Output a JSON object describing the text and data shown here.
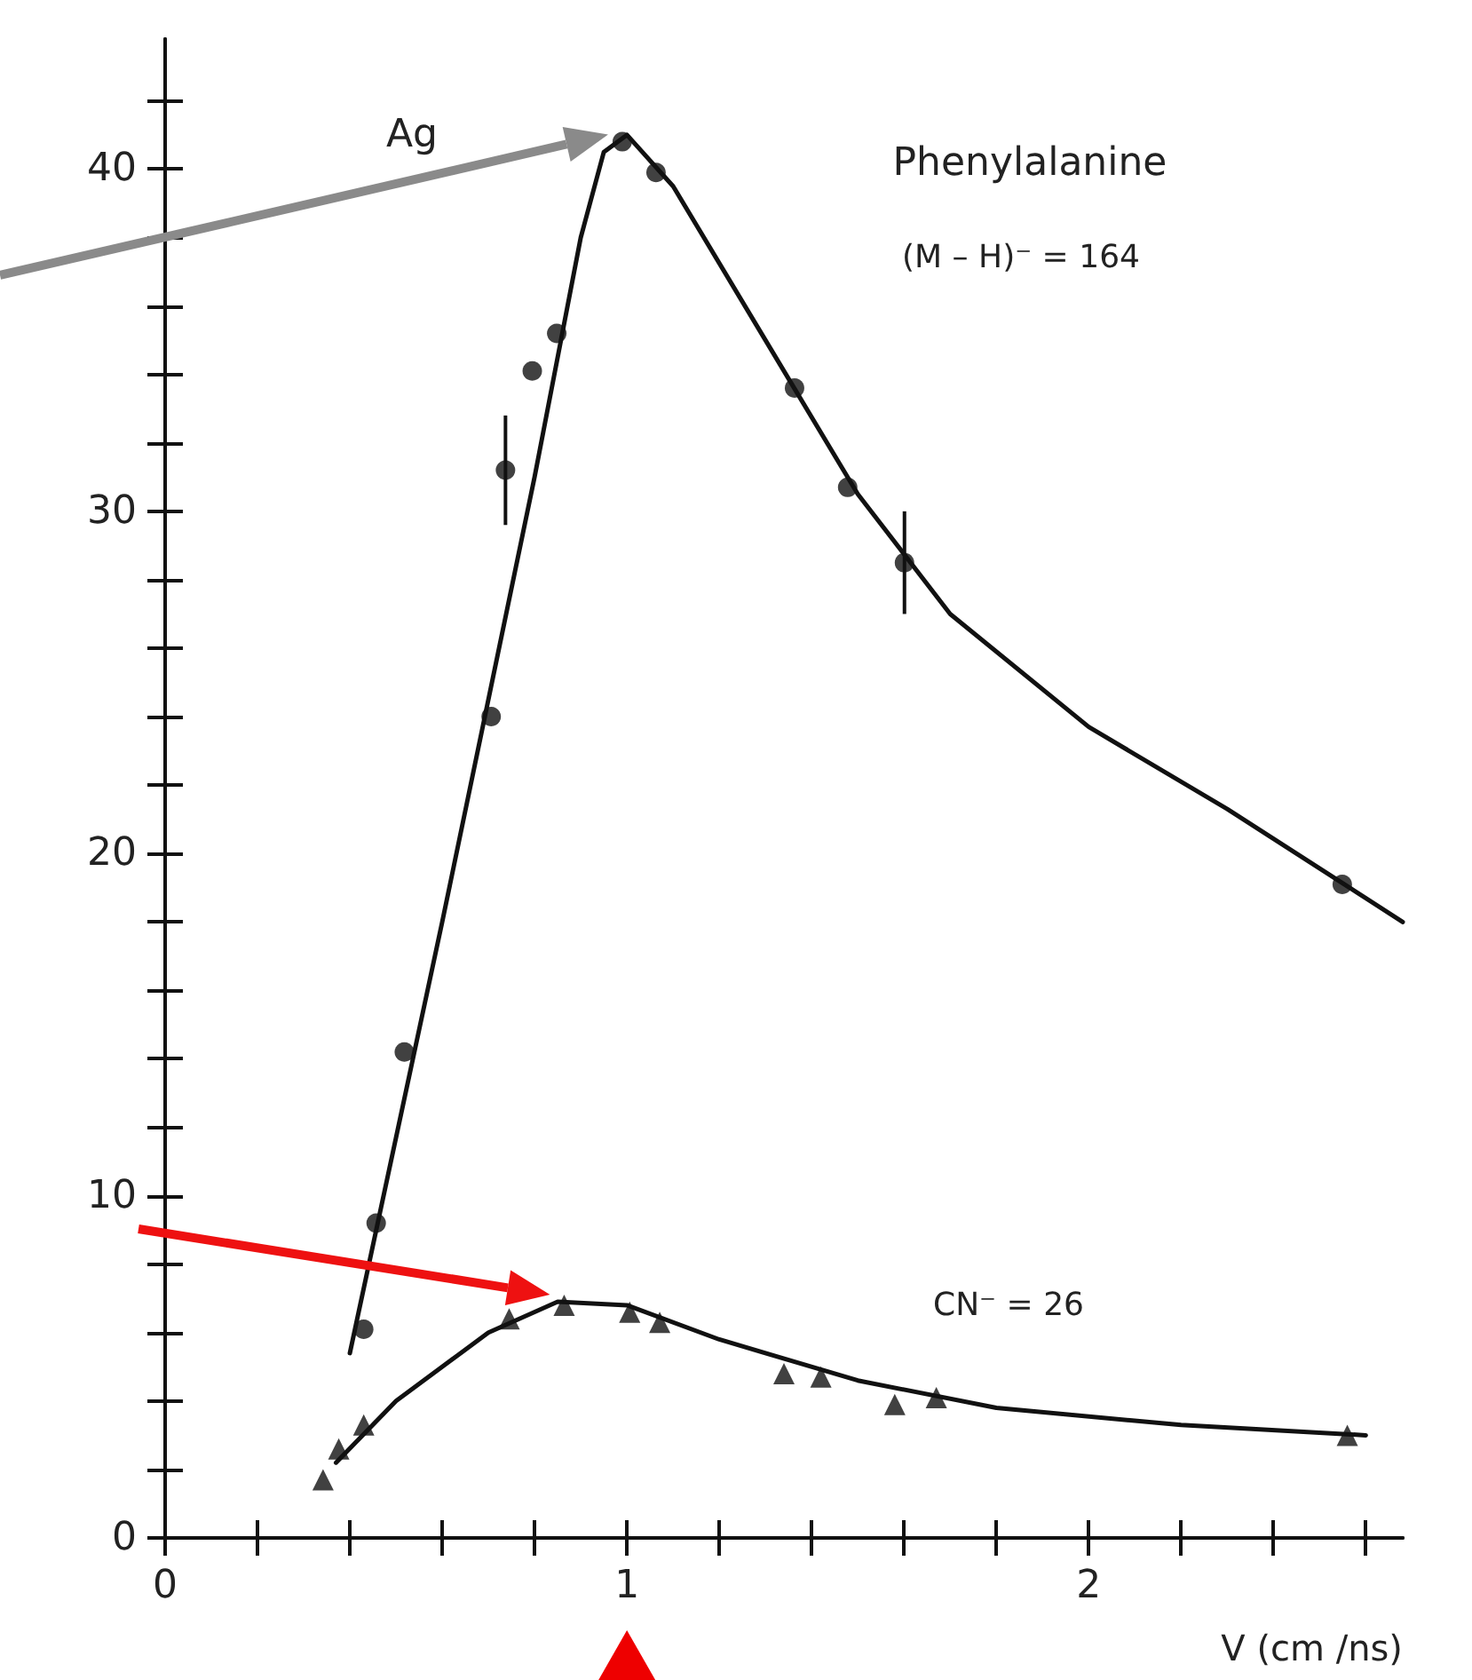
{
  "chart_data": {
    "type": "scatter",
    "xlabel": "V (cm /ns)",
    "annotations": [
      "Ag",
      "Phenylalanine",
      "(M – H)⁻ = 164",
      "CN⁻ = 26"
    ],
    "xlim": [
      0,
      2.68
    ],
    "ylim": [
      0,
      43.8
    ],
    "xticks": [
      0,
      {
        "value": 0.2,
        "label": null
      },
      {
        "value": 0.4,
        "label": null
      },
      {
        "value": 0.6,
        "label": null
      },
      {
        "value": 0.8,
        "label": null
      },
      1,
      {
        "value": 1.2,
        "label": null
      },
      {
        "value": 1.4,
        "label": null
      },
      {
        "value": 1.6,
        "label": null
      },
      {
        "value": 1.8,
        "label": null
      },
      2,
      {
        "value": 2.2,
        "label": null
      },
      {
        "value": 2.4,
        "label": null
      },
      {
        "value": 2.6,
        "label": null
      }
    ],
    "yticks": [
      0,
      {
        "value": 2,
        "label": null
      },
      {
        "value": 4,
        "label": null
      },
      {
        "value": 6,
        "label": null
      },
      {
        "value": 8,
        "label": null
      },
      10,
      {
        "value": 12,
        "label": null
      },
      {
        "value": 14,
        "label": null
      },
      {
        "value": 16,
        "label": null
      },
      {
        "value": 18,
        "label": null
      },
      20,
      {
        "value": 22,
        "label": null
      },
      {
        "value": 24,
        "label": null
      },
      {
        "value": 26,
        "label": null
      },
      {
        "value": 28,
        "label": null
      },
      30,
      {
        "value": 32,
        "label": null
      },
      {
        "value": 34,
        "label": null
      },
      {
        "value": 36,
        "label": null
      },
      {
        "value": 38,
        "label": null
      },
      40,
      {
        "value": 42,
        "label": null
      }
    ],
    "grid": false,
    "series": [
      {
        "marker": "circle",
        "color": "#111111",
        "x": [
          0.43,
          0.457,
          0.518,
          0.706,
          0.737,
          0.795,
          0.848,
          0.99,
          1.063,
          1.363,
          1.478,
          1.601,
          2.549
        ],
        "values": [
          6.1,
          9.2,
          14.2,
          24.0,
          31.2,
          34.1,
          35.2,
          40.8,
          39.9,
          33.6,
          30.7,
          28.5,
          19.1
        ],
        "errors": [
          null,
          null,
          null,
          null,
          1.6,
          null,
          null,
          null,
          null,
          null,
          null,
          1.5,
          null
        ]
      },
      {
        "type": "line",
        "marker": "none",
        "line_style": "solid",
        "color": "#111111",
        "x": [
          0.4,
          0.6,
          0.8,
          0.9,
          0.95,
          1.0,
          1.1,
          1.3,
          1.5,
          1.7,
          2.0,
          2.3,
          2.68
        ],
        "values": [
          5.4,
          18,
          31,
          38,
          40.5,
          41,
          39.5,
          35.0,
          30.5,
          27.0,
          23.7,
          21.3,
          18.0
        ]
      },
      {
        "marker": "triangle",
        "color": "#111111",
        "x": [
          0.342,
          0.376,
          0.43,
          0.745,
          0.864,
          1.006,
          1.071,
          1.34,
          1.42,
          1.58,
          1.67,
          2.56
        ],
        "values": [
          1.7,
          2.6,
          3.3,
          6.4,
          6.8,
          6.6,
          6.3,
          4.8,
          4.7,
          3.9,
          4.1,
          3.0
        ]
      },
      {
        "type": "line",
        "marker": "none",
        "line_style": "solid",
        "color": "#111111",
        "x": [
          0.37,
          0.5,
          0.7,
          0.85,
          1.0,
          1.2,
          1.5,
          1.8,
          2.2,
          2.6
        ],
        "values": [
          2.2,
          4.0,
          6.0,
          6.9,
          6.8,
          5.8,
          4.6,
          3.8,
          3.3,
          3.0
        ]
      }
    ]
  }
}
